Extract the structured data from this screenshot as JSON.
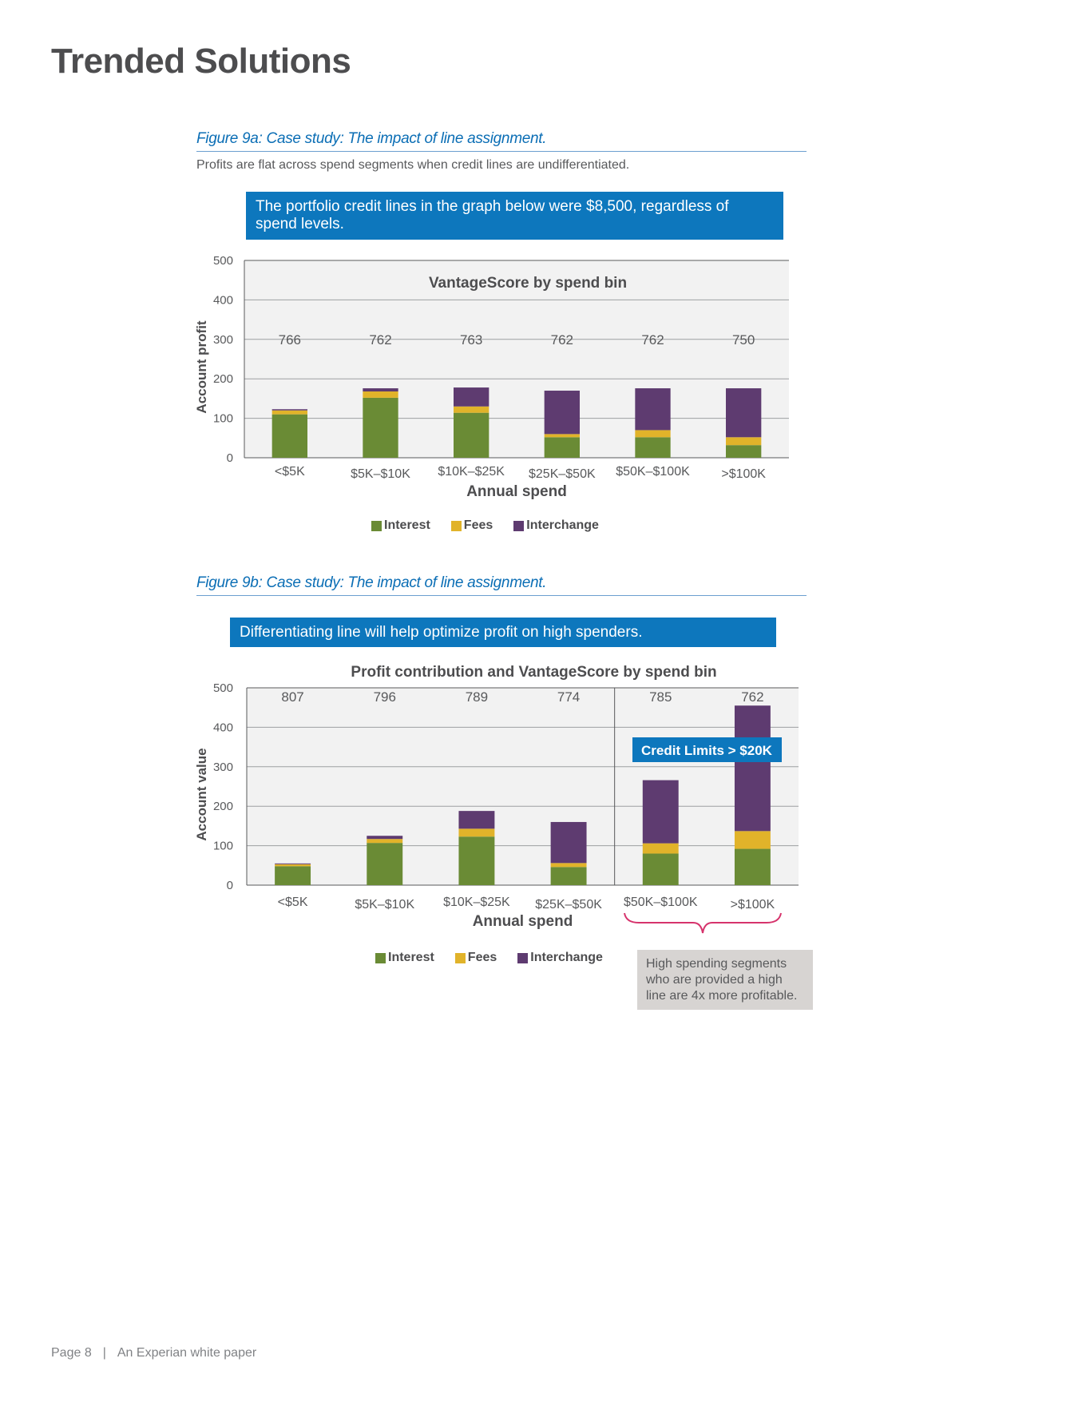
{
  "page": {
    "title": "Trended Solutions",
    "footer_page": "Page 8",
    "footer_separator": "|",
    "footer_text": "An Experian white paper"
  },
  "colors": {
    "interest": "#6a8b35",
    "fees": "#e1b32a",
    "interchange": "#5e3b70",
    "callout": "#0d77bd",
    "plot_bg": "#f2f2f2",
    "brace": "#d6336c"
  },
  "fig9a": {
    "title": "Figure 9a: Case study: The impact of line assignment.",
    "subtitle": "Profits are flat across spend segments when credit lines are undifferentiated.",
    "callout": "The portfolio credit lines in the graph below were $8,500, regardless of spend levels."
  },
  "fig9b": {
    "title": "Figure 9b: Case study: The impact of line assignment.",
    "callout": "Differentiating line will help optimize profit on high spenders.",
    "credit_limit_badge": "Credit Limits > $20K",
    "note": "High spending segments who are provided a high line are 4x more profitable."
  },
  "legend": {
    "interest": "Interest",
    "fees": "Fees",
    "interchange": "Interchange"
  },
  "chart_data": [
    {
      "id": "chart-9a",
      "type": "bar",
      "stacked": true,
      "title": "VantageScore by spend bin",
      "xlabel": "Annual spend",
      "ylabel": "Account profit",
      "ylim": [
        0,
        500
      ],
      "yticks": [
        0,
        100,
        200,
        300,
        400,
        500
      ],
      "grid": true,
      "categories": [
        "<$5K",
        "$5K–$10K",
        "$10K–$25K",
        "$25K–$50K",
        "$50K–$100K",
        ">$100K"
      ],
      "series": [
        {
          "name": "Interest",
          "key": "interest",
          "values": [
            110,
            152,
            114,
            52,
            52,
            32
          ]
        },
        {
          "name": "Fees",
          "key": "fees",
          "values": [
            10,
            16,
            16,
            8,
            18,
            20
          ]
        },
        {
          "name": "Interchange",
          "key": "interchange",
          "values": [
            3,
            8,
            48,
            110,
            106,
            124
          ]
        }
      ],
      "annotations": [
        "766",
        "762",
        "763",
        "762",
        "762",
        "750"
      ],
      "annotation_y": 300
    },
    {
      "id": "chart-9b",
      "type": "bar",
      "stacked": true,
      "title": "Profit contribution and VantageScore by spend bin",
      "xlabel": "Annual spend",
      "ylabel": "Account value",
      "ylim": [
        0,
        500
      ],
      "yticks": [
        0,
        100,
        200,
        300,
        400,
        500
      ],
      "grid": true,
      "categories": [
        "<$5K",
        "$5K–$10K",
        "$10K–$25K",
        "$25K–$50K",
        "$50K–$100K",
        ">$100K"
      ],
      "series": [
        {
          "name": "Interest",
          "key": "interest",
          "values": [
            48,
            107,
            123,
            46,
            80,
            92
          ]
        },
        {
          "name": "Fees",
          "key": "fees",
          "values": [
            5,
            10,
            20,
            10,
            26,
            45
          ]
        },
        {
          "name": "Interchange",
          "key": "interchange",
          "values": [
            2,
            8,
            45,
            104,
            160,
            318
          ]
        }
      ],
      "annotations": [
        "807",
        "796",
        "789",
        "774",
        "785",
        "762"
      ],
      "annotation_y": 478
    }
  ]
}
